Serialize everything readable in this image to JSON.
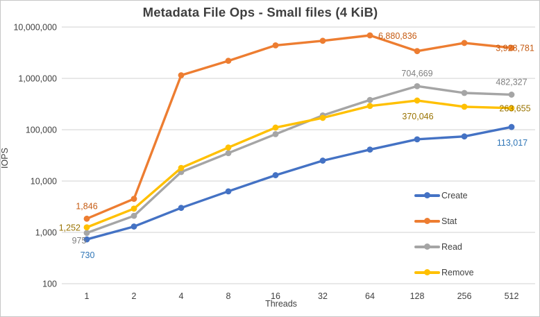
{
  "chart_data": {
    "type": "line",
    "title": "Metadata File Ops - Small files (4 KiB)",
    "xlabel": "Threads",
    "ylabel": "IOPS",
    "x_scale": "categorical (powers of 2)",
    "y_scale": "log10",
    "ylim": [
      100,
      10000000
    ],
    "grid": "horizontal major gridlines only",
    "legend_position": "inside bottom-right",
    "categories": [
      "1",
      "2",
      "4",
      "8",
      "16",
      "32",
      "64",
      "128",
      "256",
      "512"
    ],
    "y_ticks": [
      {
        "value": 100,
        "label": "100"
      },
      {
        "value": 1000,
        "label": "1,000"
      },
      {
        "value": 10000,
        "label": "10,000"
      },
      {
        "value": 100000,
        "label": "100,000"
      },
      {
        "value": 1000000,
        "label": "1,000,000"
      },
      {
        "value": 10000000,
        "label": "10,000,000"
      }
    ],
    "series": [
      {
        "name": "Create",
        "color": "#4472C4",
        "label_color": "#2E75B6",
        "values": [
          730,
          1300,
          3000,
          6300,
          13000,
          25000,
          41000,
          65000,
          74000,
          113017
        ]
      },
      {
        "name": "Stat",
        "color": "#ED7D31",
        "label_color": "#C55A11",
        "values": [
          1846,
          4500,
          1150000,
          2200000,
          4400000,
          5400000,
          6880836,
          3400000,
          4900000,
          3928781
        ]
      },
      {
        "name": "Read",
        "color": "#A5A5A5",
        "label_color": "#7F7F7F",
        "values": [
          975,
          2100,
          15000,
          35000,
          82000,
          190000,
          380000,
          704669,
          520000,
          482327
        ]
      },
      {
        "name": "Remove",
        "color": "#FFC000",
        "label_color": "#997300",
        "values": [
          1252,
          2900,
          18000,
          45000,
          110000,
          170000,
          290000,
          370046,
          280000,
          263655
        ]
      }
    ],
    "point_labels": [
      {
        "series": "Create",
        "category": "1",
        "text": "730",
        "position": "below"
      },
      {
        "series": "Create",
        "category": "512",
        "text": "113,017",
        "position": "below"
      },
      {
        "series": "Stat",
        "category": "1",
        "text": "1,846",
        "position": "above"
      },
      {
        "series": "Stat",
        "category": "64",
        "text": "6,880,836",
        "position": "right"
      },
      {
        "series": "Stat",
        "category": "512",
        "text": "3,928,781",
        "position": "center"
      },
      {
        "series": "Read",
        "category": "1",
        "text": "975",
        "position": "below-left"
      },
      {
        "series": "Read",
        "category": "128",
        "text": "704,669",
        "position": "above"
      },
      {
        "series": "Read",
        "category": "512",
        "text": "482,327",
        "position": "above"
      },
      {
        "series": "Remove",
        "category": "1",
        "text": "1,252",
        "position": "left"
      },
      {
        "series": "Remove",
        "category": "128",
        "text": "370,046",
        "position": "below"
      },
      {
        "series": "Remove",
        "category": "512",
        "text": "263,655",
        "position": "center"
      }
    ],
    "colors": {
      "grid": "#D9D9D9",
      "axis_text": "#404040",
      "title_text": "#3F3F3F",
      "background": "#FFFFFF",
      "border": "#C6C6C6"
    }
  }
}
